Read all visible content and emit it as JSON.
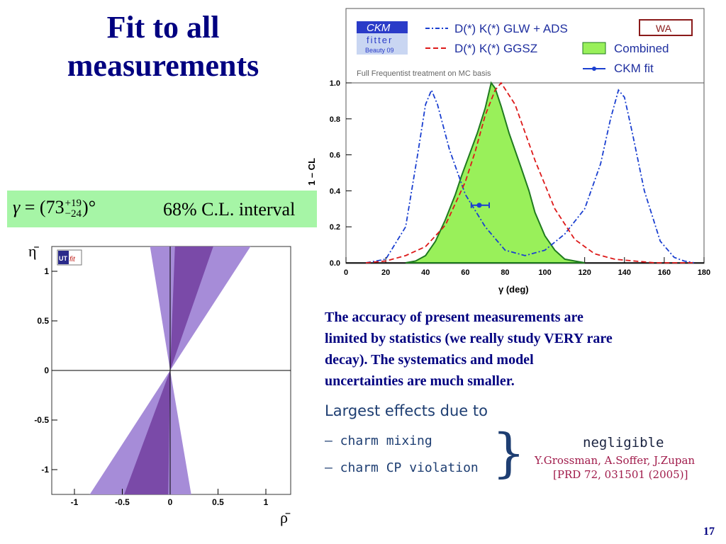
{
  "slide": {
    "title_line1": "Fit to all",
    "title_line2": "measurements",
    "page_number": "17"
  },
  "gamma_box": {
    "symbol": "γ",
    "equals": "= (73",
    "sup": "+19",
    "sub": "−24",
    "close": ")°",
    "interval": "68% C.L. interval"
  },
  "ckm_plot": {
    "logo_line1": "CKM",
    "logo_line2": "fitter",
    "logo_line3": "Beauty 09",
    "subtitle": "Full Frequentist treatment on MC basis",
    "wa_badge": "WA",
    "legend": {
      "glw_ads": "D(*) K(*) GLW + ADS",
      "ggsz": "D(*) K(*) GGSZ",
      "combined": "Combined",
      "ckmfit": "CKM fit"
    },
    "ylabel": "1 – CL",
    "xlabel": "γ  (deg)",
    "x_ticks": [
      "0",
      "20",
      "40",
      "60",
      "80",
      "100",
      "120",
      "140",
      "160",
      "180"
    ],
    "y_ticks": [
      "0.0",
      "0.2",
      "0.4",
      "0.6",
      "0.8",
      "1.0"
    ],
    "colors": {
      "glw": "#1a3fd0",
      "ggsz": "#dd1a1a",
      "combined_fill": "#99f05a",
      "combined_line": "#1f7a1f",
      "fit": "#1a3fd0"
    }
  },
  "chart_data": {
    "type": "line",
    "xlim": [
      0,
      180
    ],
    "ylim": [
      0,
      1
    ],
    "xlabel": "γ  (deg)",
    "ylabel": "1 – CL",
    "series": [
      {
        "name": "D(*) K(*) GLW + ADS",
        "style": "dash-dot",
        "x": [
          10,
          20,
          30,
          36,
          40,
          43,
          46,
          52,
          60,
          70,
          80,
          90,
          100,
          110,
          120,
          128,
          133,
          137,
          140,
          144,
          150,
          158,
          165,
          170,
          175
        ],
        "y": [
          0.0,
          0.02,
          0.2,
          0.6,
          0.88,
          0.96,
          0.88,
          0.63,
          0.38,
          0.2,
          0.07,
          0.04,
          0.07,
          0.16,
          0.3,
          0.55,
          0.8,
          0.96,
          0.92,
          0.72,
          0.4,
          0.12,
          0.03,
          0.01,
          0.0
        ]
      },
      {
        "name": "D(*) K(*) GGSZ",
        "style": "dashed",
        "x": [
          10,
          20,
          30,
          40,
          50,
          60,
          65,
          70,
          75,
          78,
          85,
          95,
          105,
          115,
          125,
          135,
          145,
          155,
          165,
          175
        ],
        "y": [
          0.0,
          0.01,
          0.04,
          0.09,
          0.21,
          0.45,
          0.62,
          0.82,
          0.96,
          1.0,
          0.88,
          0.57,
          0.3,
          0.13,
          0.05,
          0.02,
          0.01,
          0.0,
          0.0,
          0.0
        ]
      },
      {
        "name": "Combined",
        "style": "filled",
        "x": [
          30,
          35,
          40,
          45,
          50,
          55,
          58,
          62,
          66,
          70,
          73,
          75,
          78,
          82,
          88,
          92,
          95,
          100,
          105,
          110,
          115,
          120
        ],
        "y": [
          0.0,
          0.01,
          0.04,
          0.12,
          0.24,
          0.38,
          0.48,
          0.6,
          0.72,
          0.86,
          1.0,
          0.97,
          0.87,
          0.72,
          0.53,
          0.4,
          0.28,
          0.15,
          0.07,
          0.02,
          0.01,
          0.0
        ]
      }
    ],
    "ckm_fit": {
      "value": 67,
      "low": 63,
      "high": 72,
      "level": 0.32
    }
  },
  "ut_plot": {
    "logo_ut": "UT",
    "logo_fit": "fit",
    "xlabel": "ρ̄",
    "ylabel": "η̄",
    "x_ticks": [
      "-1",
      "-0.5",
      "0",
      "0.5",
      "1"
    ],
    "y_ticks": [
      "1",
      "0.5",
      "0",
      "-0.5",
      "-1"
    ],
    "colors": {
      "inner": "#7a4aa8",
      "outer": "#a68cd8"
    }
  },
  "text": {
    "line1": "The accuracy of present measurements are",
    "line2": "limited by statistics (we really study VERY rare",
    "line3": "decay). The systematics and model",
    "line4": "uncertainties are much smaller."
  },
  "effects": {
    "header": "Largest effects due to",
    "item1": "– charm mixing",
    "item2": "– charm CP violation",
    "brace": "}",
    "negligible": "negligible",
    "ref1": "Y.Grossman, A.Soffer, J.Zupan",
    "ref2": "[PRD 72, 031501 (2005)]"
  }
}
